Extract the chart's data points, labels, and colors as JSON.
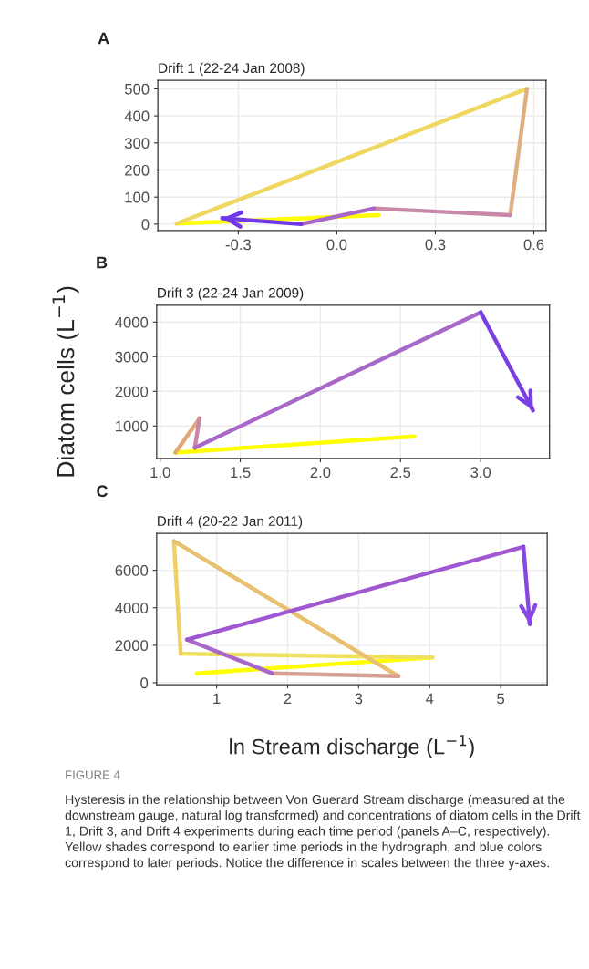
{
  "chart_data": [
    {
      "type": "line",
      "title": "Drift 1 (22-24 Jan 2008)",
      "annotations": [
        "A"
      ],
      "xlim": [
        -0.545,
        0.637
      ],
      "ylim": [
        -24,
        531
      ],
      "xticks": [
        {
          "value": -0.3,
          "label": "-0.3"
        },
        {
          "value": 0,
          "label": "0.0"
        },
        {
          "value": 0.3,
          "label": "0.3"
        },
        {
          "value": 0.6,
          "label": "0.6"
        }
      ],
      "yticks": [
        0,
        100,
        200,
        300,
        400,
        500
      ],
      "grid": true,
      "series": [
        {
          "color": "#ffff00",
          "x": [
            0.127,
            -0.488
          ],
          "values": [
            33,
            2
          ]
        },
        {
          "color": "#f0d860",
          "x": [
            -0.488,
            0.579
          ],
          "values": [
            2,
            500
          ]
        },
        {
          "color": "#e0b080",
          "x": [
            0.579,
            0.528
          ],
          "values": [
            500,
            33
          ]
        },
        {
          "color": "#c888a8",
          "x": [
            0.528,
            0.113
          ],
          "values": [
            33,
            58
          ]
        },
        {
          "color": "#a868c8",
          "x": [
            0.113,
            -0.109
          ],
          "values": [
            58,
            0
          ]
        },
        {
          "color": "#7038e8",
          "x": [
            -0.109,
            -0.349
          ],
          "values": [
            0,
            22
          ]
        }
      ]
    },
    {
      "type": "line",
      "title": "Drift 3 (22-24 Jan 2009)",
      "annotations": [
        "B"
      ],
      "ylabel": "Diatom cells (L$^{−1}$)",
      "xlim": [
        0.978,
        3.43
      ],
      "ylim": [
        65,
        4486
      ],
      "xticks": [
        {
          "value": 1.0,
          "label": "1.0"
        },
        {
          "value": 1.5,
          "label": "1.5"
        },
        {
          "value": 2.0,
          "label": "2.0"
        },
        {
          "value": 2.5,
          "label": "2.5"
        },
        {
          "value": 3.0,
          "label": "3.0"
        }
      ],
      "yticks": [
        1000,
        2000,
        3000,
        4000
      ],
      "grid": true,
      "series": [
        {
          "color": "#ffff00",
          "x": [
            2.587,
            1.095
          ],
          "values": [
            700,
            230
          ]
        },
        {
          "color": "#e0a878",
          "x": [
            1.095,
            1.246
          ],
          "values": [
            230,
            1220
          ]
        },
        {
          "color": "#c888a8",
          "x": [
            1.246,
            1.216
          ],
          "values": [
            1220,
            370
          ]
        },
        {
          "color": "#a868c8",
          "x": [
            1.216,
            3.0
          ],
          "values": [
            370,
            4280
          ]
        },
        {
          "color": "#7840e0",
          "x": [
            3.0,
            3.327
          ],
          "values": [
            4280,
            1450
          ]
        }
      ]
    },
    {
      "type": "line",
      "title": "Drift 4 (20-22 Jan 2011)",
      "annotations": [
        "C",
        "FIGURE 4",
        "Hysteresis in the relationship between Von Guerard Stream discharge (measured at the downstream gauge, natural log transformed) and concentrations of diatom cells in the Drift 1, Drift 3, and Drift 4 experiments during each time period (panels A–C, respectively). Yellow shades correspond to earlier time periods in the hydrograph, and blue colors correspond to later periods. Notice the difference in scales between the three y-axes."
      ],
      "xlabel": "ln Stream discharge (L$^{−1}$)",
      "xlim": [
        0.156,
        5.655
      ],
      "ylim": [
        -100,
        7970
      ],
      "xticks": [
        1,
        2,
        3,
        4,
        5
      ],
      "yticks": [
        0,
        2000,
        4000,
        6000
      ],
      "grid": true,
      "series": [
        {
          "color": "#ffff00",
          "x": [
            0.72,
            4.04
          ],
          "values": [
            500,
            1350
          ]
        },
        {
          "color": "#f0e060",
          "x": [
            4.04,
            0.494
          ],
          "values": [
            1350,
            1550
          ]
        },
        {
          "color": "#f0d060",
          "x": [
            0.494,
            0.4
          ],
          "values": [
            1550,
            7560
          ]
        },
        {
          "color": "#e8c070",
          "x": [
            0.4,
            3.56
          ],
          "values": [
            7560,
            350
          ]
        },
        {
          "color": "#d8a090",
          "x": [
            3.56,
            1.78
          ],
          "values": [
            350,
            500
          ]
        },
        {
          "color": "#a868c8",
          "x": [
            1.78,
            0.584
          ],
          "values": [
            500,
            2300
          ]
        },
        {
          "color": "#a058d0",
          "x": [
            0.584,
            5.32
          ],
          "values": [
            2300,
            7260
          ]
        },
        {
          "color": "#8848e0",
          "x": [
            5.32,
            5.41
          ],
          "values": [
            7260,
            3120
          ]
        }
      ]
    }
  ]
}
